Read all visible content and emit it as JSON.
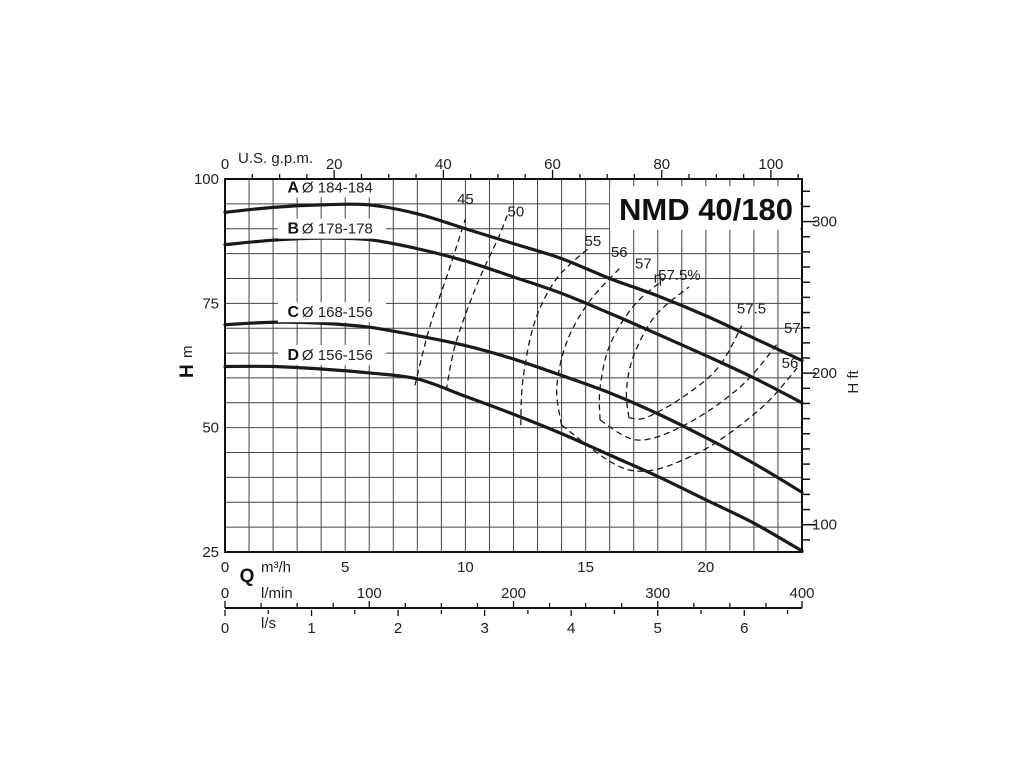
{
  "chart_data": {
    "type": "line",
    "title": "NMD 40/180",
    "x_primary": {
      "label_letter": "Q",
      "unit": "m³/h",
      "range": [
        0,
        24
      ],
      "ticks": [
        0,
        5,
        10,
        15,
        20
      ]
    },
    "x_gpm": {
      "label": "U.S. g.p.m.",
      "range": [
        0,
        105.7
      ],
      "ticks": [
        0,
        20,
        40,
        60,
        80,
        100
      ]
    },
    "x_lmin": {
      "unit": "l/min",
      "range": [
        0,
        400
      ],
      "ticks": [
        0,
        100,
        200,
        300,
        400
      ]
    },
    "x_ls": {
      "unit": "l/s",
      "range": [
        0,
        6.667
      ],
      "ticks": [
        0,
        1,
        2,
        3,
        4,
        5,
        6
      ]
    },
    "y_left": {
      "label_letter": "H",
      "unit": "m",
      "range": [
        25,
        100
      ],
      "ticks": [
        25,
        50,
        75,
        100
      ]
    },
    "y_right": {
      "label": "H ft",
      "range": [
        82.0,
        328.1
      ],
      "ticks": [
        100,
        200,
        300
      ]
    },
    "grid": true,
    "series": [
      {
        "letter": "A",
        "name": "Ø 184-184",
        "x": [
          0,
          2,
          4,
          6,
          8,
          10,
          12,
          14,
          16,
          18,
          20,
          22,
          24
        ],
        "y": [
          93.3,
          94.3,
          94.8,
          94.8,
          93.0,
          90.0,
          87.0,
          84.0,
          80.0,
          76.5,
          72.5,
          68.0,
          63.5
        ]
      },
      {
        "letter": "B",
        "name": "Ø 178-178",
        "x": [
          0,
          2,
          4,
          6,
          8,
          10,
          12,
          14,
          16,
          18,
          20,
          22,
          24
        ],
        "y": [
          86.8,
          87.7,
          88.1,
          87.8,
          86.0,
          83.5,
          80.3,
          77.0,
          73.0,
          68.8,
          64.5,
          60.0,
          55.0
        ]
      },
      {
        "letter": "C",
        "name": "Ø 168-156",
        "x": [
          0,
          2,
          4,
          6,
          8,
          10,
          12,
          14,
          16,
          18,
          20,
          22,
          24
        ],
        "y": [
          70.7,
          71.2,
          71.0,
          70.2,
          68.5,
          66.5,
          63.8,
          60.5,
          57.0,
          52.8,
          48.0,
          42.8,
          37.0
        ]
      },
      {
        "letter": "D",
        "name": "Ø 156-156",
        "x": [
          0,
          2,
          4,
          6,
          8,
          10,
          12,
          14,
          16,
          18,
          20,
          22,
          24
        ],
        "y": [
          62.3,
          62.3,
          61.8,
          61.0,
          59.8,
          56.3,
          52.7,
          48.8,
          44.5,
          40.2,
          35.5,
          30.8,
          25.2
        ]
      }
    ],
    "efficiency": {
      "symbol": "η",
      "labels": [
        "45",
        "50",
        "55",
        "56",
        "57",
        "57.5%",
        "57.5",
        "57",
        "56"
      ],
      "contours": [
        {
          "value": "45",
          "x": [
            7.9,
            8.5,
            9.3,
            10.0
          ],
          "y": [
            58.5,
            70.0,
            81.5,
            92.0
          ]
        },
        {
          "value": "50",
          "x": [
            9.2,
            9.6,
            10.5,
            11.4,
            11.8
          ],
          "y": [
            57.5,
            67.0,
            79.0,
            88.5,
            93.5
          ]
        },
        {
          "value": "55",
          "x": [
            12.3,
            12.4,
            12.9,
            13.8,
            15.1
          ],
          "y": [
            50.5,
            60.0,
            71.5,
            80.0,
            86.0
          ]
        },
        {
          "value": "56",
          "x": [
            14.0,
            13.8,
            14.2,
            15.1,
            16.4
          ],
          "y": [
            50.5,
            58.0,
            67.0,
            75.0,
            82.0
          ]
        },
        {
          "value": "57",
          "x": [
            15.6,
            15.6,
            16.0,
            17.0,
            18.3
          ],
          "y": [
            51.5,
            58.0,
            66.5,
            74.5,
            80.0
          ]
        },
        {
          "value": "57.5",
          "x": [
            16.8,
            16.7,
            17.0,
            17.9,
            19.3
          ],
          "y": [
            52.0,
            57.5,
            64.5,
            72.5,
            78.3
          ]
        }
      ],
      "loops": [
        {
          "value": "57.5",
          "x": [
            16.8,
            17.5,
            19.0,
            20.5,
            21.5
          ],
          "y": [
            52.0,
            52.0,
            56.0,
            62.0,
            70.5
          ]
        },
        {
          "value": "57",
          "x": [
            15.6,
            17.2,
            19.3,
            21.5,
            23.0
          ],
          "y": [
            51.5,
            47.5,
            51.0,
            58.5,
            67.0
          ]
        },
        {
          "value": "56",
          "x": [
            14.0,
            16.8,
            19.5,
            22.2,
            23.8
          ],
          "y": [
            50.5,
            41.5,
            44.5,
            53.5,
            62.0
          ]
        }
      ]
    }
  }
}
